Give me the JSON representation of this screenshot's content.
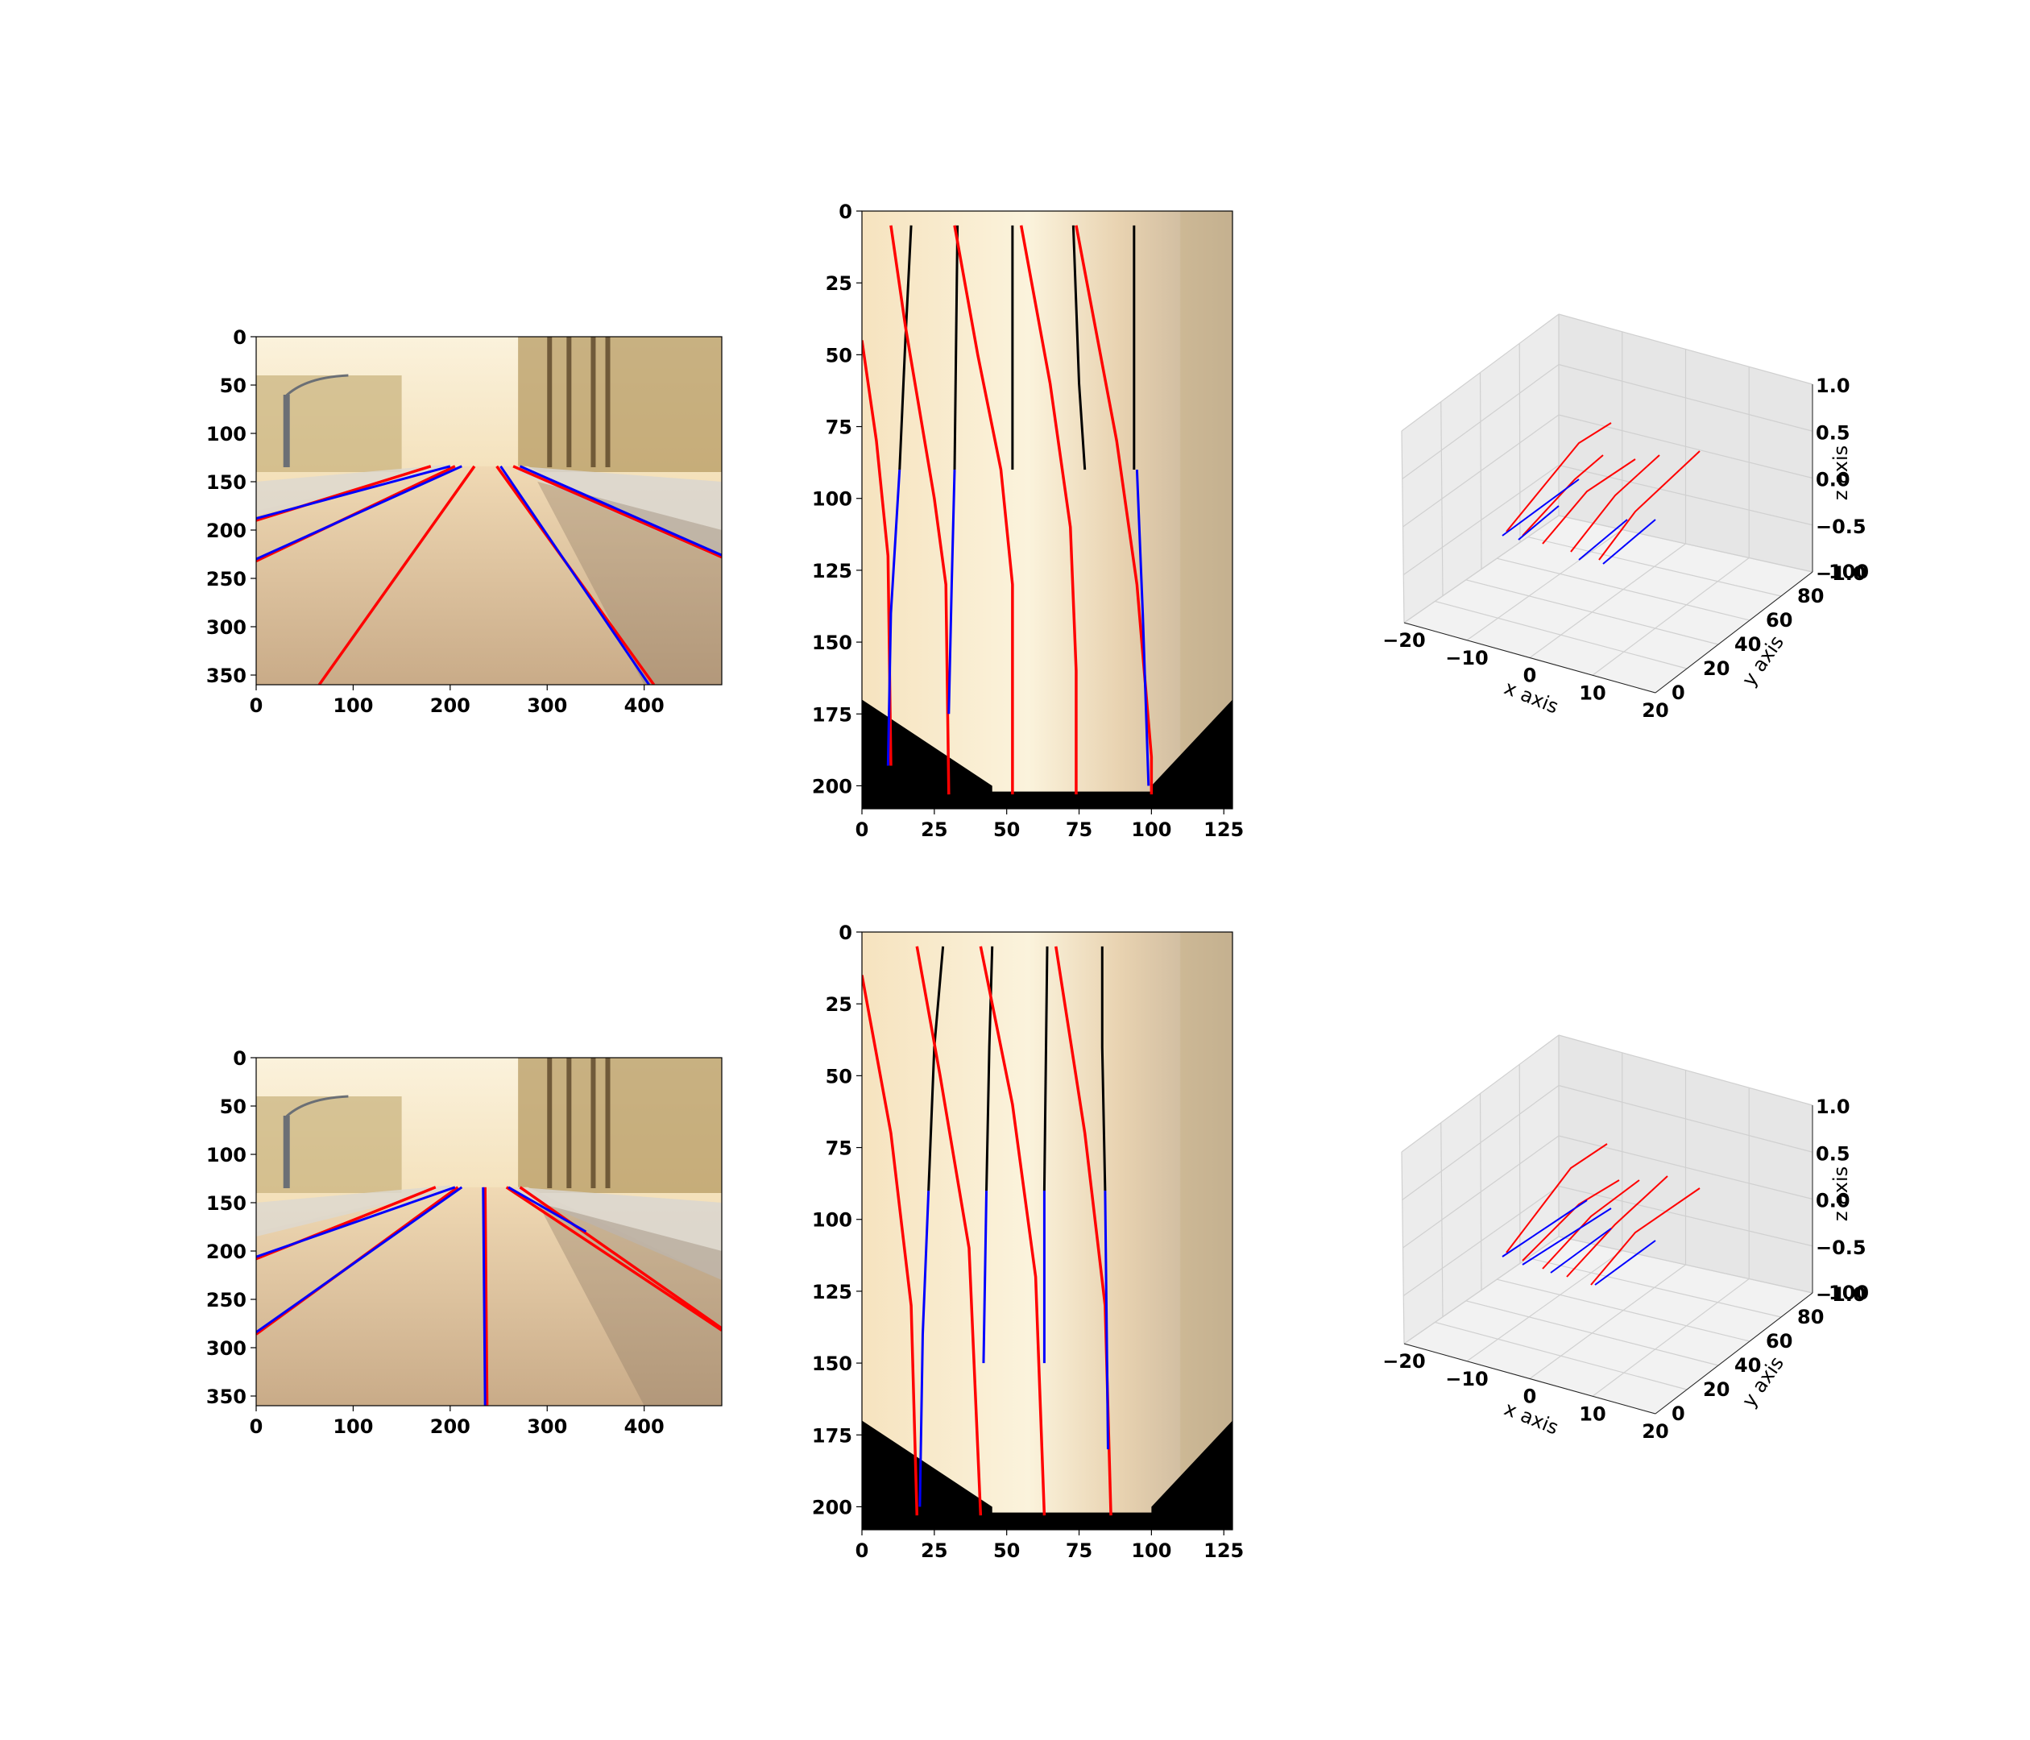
{
  "colors": {
    "prediction": "#ff0000",
    "ground_truth": "#0000ff",
    "vis_gt": "#000000"
  },
  "chart_data": [
    {
      "type": "image",
      "row": 1,
      "panel": "camera-view",
      "x": {
        "ticks": [
          0,
          100,
          200,
          300,
          400
        ],
        "lim": [
          0,
          480
        ]
      },
      "y": {
        "ticks": [
          0,
          50,
          100,
          150,
          200,
          250,
          300,
          350
        ],
        "lim": [
          360,
          0
        ]
      },
      "lanes_red": [
        [
          [
            0,
            190
          ],
          [
            180,
            134
          ]
        ],
        [
          [
            0,
            232
          ],
          [
            205,
            134
          ]
        ],
        [
          [
            65,
            360
          ],
          [
            225,
            134
          ]
        ],
        [
          [
            248,
            134
          ],
          [
            410,
            360
          ]
        ],
        [
          [
            265,
            134
          ],
          [
            480,
            228
          ]
        ]
      ],
      "lanes_blue": [
        [
          [
            0,
            188
          ],
          [
            200,
            134
          ]
        ],
        [
          [
            0,
            230
          ],
          [
            212,
            134
          ]
        ],
        [
          [
            252,
            134
          ],
          [
            405,
            360
          ]
        ],
        [
          [
            272,
            134
          ],
          [
            480,
            226
          ]
        ]
      ]
    },
    {
      "type": "image",
      "row": 1,
      "panel": "bird-eye-view",
      "x": {
        "ticks": [
          0,
          25,
          50,
          75,
          100,
          125
        ],
        "lim": [
          0,
          128
        ]
      },
      "y": {
        "ticks": [
          0,
          25,
          50,
          75,
          100,
          125,
          150,
          175,
          200
        ],
        "lim": [
          208,
          0
        ]
      },
      "lanes_red": [
        [
          [
            0,
            45
          ],
          [
            5,
            80
          ],
          [
            9,
            120
          ],
          [
            10,
            193
          ]
        ],
        [
          [
            10,
            5
          ],
          [
            15,
            40
          ],
          [
            25,
            100
          ],
          [
            29,
            130
          ],
          [
            30,
            203
          ]
        ],
        [
          [
            32,
            5
          ],
          [
            40,
            50
          ],
          [
            48,
            90
          ],
          [
            52,
            130
          ],
          [
            52,
            203
          ]
        ],
        [
          [
            55,
            5
          ],
          [
            65,
            60
          ],
          [
            72,
            110
          ],
          [
            74,
            160
          ],
          [
            74,
            203
          ]
        ],
        [
          [
            74,
            5
          ],
          [
            88,
            80
          ],
          [
            95,
            130
          ],
          [
            100,
            190
          ],
          [
            100,
            203
          ]
        ]
      ],
      "lanes_blue": [
        [
          [
            13,
            90
          ],
          [
            10,
            140
          ],
          [
            9,
            193
          ]
        ],
        [
          [
            32,
            90
          ],
          [
            31,
            130
          ],
          [
            30,
            175
          ]
        ],
        [
          [
            95,
            90
          ],
          [
            97,
            140
          ],
          [
            99,
            200
          ]
        ]
      ],
      "lanes_black": [
        [
          [
            17,
            5
          ],
          [
            15,
            45
          ],
          [
            13,
            90
          ]
        ],
        [
          [
            33,
            5
          ],
          [
            32,
            90
          ]
        ],
        [
          [
            52,
            5
          ],
          [
            52,
            90
          ]
        ],
        [
          [
            73,
            5
          ],
          [
            75,
            60
          ],
          [
            77,
            90
          ]
        ],
        [
          [
            94,
            5
          ],
          [
            94,
            90
          ]
        ]
      ]
    },
    {
      "type": "3d-line",
      "row": 1,
      "panel": "3d-view",
      "xlabel": "x axis",
      "ylabel": "y axis",
      "zlabel": "z axis",
      "x_ticks": [
        -20,
        -10,
        0,
        10,
        20
      ],
      "y_ticks": [
        0,
        20,
        40,
        60,
        80,
        100
      ],
      "z_ticks": [
        -1.0,
        -0.5,
        0.0,
        0.5,
        1.0
      ]
    },
    {
      "type": "image",
      "row": 2,
      "panel": "camera-view",
      "x": {
        "ticks": [
          0,
          100,
          200,
          300,
          400
        ],
        "lim": [
          0,
          480
        ]
      },
      "y": {
        "ticks": [
          0,
          50,
          100,
          150,
          200,
          250,
          300,
          350
        ],
        "lim": [
          360,
          0
        ]
      },
      "lanes_red": [
        [
          [
            0,
            208
          ],
          [
            185,
            134
          ]
        ],
        [
          [
            0,
            286
          ],
          [
            208,
            134
          ]
        ],
        [
          [
            238,
            360
          ],
          [
            236,
            134
          ]
        ],
        [
          [
            258,
            134
          ],
          [
            480,
            282
          ]
        ],
        [
          [
            272,
            134
          ],
          [
            480,
            280
          ]
        ]
      ],
      "lanes_blue": [
        [
          [
            0,
            206
          ],
          [
            205,
            134
          ]
        ],
        [
          [
            0,
            284
          ],
          [
            212,
            134
          ]
        ],
        [
          [
            236,
            360
          ],
          [
            234,
            134
          ]
        ],
        [
          [
            260,
            134
          ],
          [
            340,
            180
          ]
        ]
      ]
    },
    {
      "type": "image",
      "row": 2,
      "panel": "bird-eye-view",
      "x": {
        "ticks": [
          0,
          25,
          50,
          75,
          100,
          125
        ],
        "lim": [
          0,
          128
        ]
      },
      "y": {
        "ticks": [
          0,
          25,
          50,
          75,
          100,
          125,
          150,
          175,
          200
        ],
        "lim": [
          208,
          0
        ]
      },
      "lanes_red": [
        [
          [
            0,
            15
          ],
          [
            10,
            70
          ],
          [
            17,
            130
          ],
          [
            19,
            203
          ]
        ],
        [
          [
            19,
            5
          ],
          [
            27,
            50
          ],
          [
            37,
            110
          ],
          [
            41,
            203
          ]
        ],
        [
          [
            41,
            5
          ],
          [
            52,
            60
          ],
          [
            60,
            120
          ],
          [
            63,
            203
          ]
        ],
        [
          [
            67,
            5
          ],
          [
            77,
            70
          ],
          [
            84,
            130
          ],
          [
            86,
            203
          ]
        ]
      ],
      "lanes_blue": [
        [
          [
            23,
            90
          ],
          [
            21,
            140
          ],
          [
            20,
            200
          ]
        ],
        [
          [
            43,
            90
          ],
          [
            42,
            150
          ]
        ],
        [
          [
            63,
            90
          ],
          [
            63,
            150
          ]
        ],
        [
          [
            84,
            90
          ],
          [
            85,
            180
          ]
        ]
      ],
      "lanes_black": [
        [
          [
            28,
            5
          ],
          [
            25,
            40
          ],
          [
            23,
            90
          ]
        ],
        [
          [
            45,
            5
          ],
          [
            44,
            40
          ],
          [
            43,
            90
          ]
        ],
        [
          [
            64,
            5
          ],
          [
            63,
            90
          ]
        ],
        [
          [
            83,
            5
          ],
          [
            83,
            40
          ],
          [
            84,
            90
          ]
        ]
      ]
    },
    {
      "type": "3d-line",
      "row": 2,
      "panel": "3d-view",
      "xlabel": "x axis",
      "ylabel": "y axis",
      "zlabel": "z axis",
      "x_ticks": [
        -20,
        -10,
        0,
        10,
        20
      ],
      "y_ticks": [
        0,
        20,
        40,
        60,
        80,
        100
      ],
      "z_ticks": [
        -1.0,
        -0.5,
        0.0,
        0.5,
        1.0
      ]
    }
  ]
}
